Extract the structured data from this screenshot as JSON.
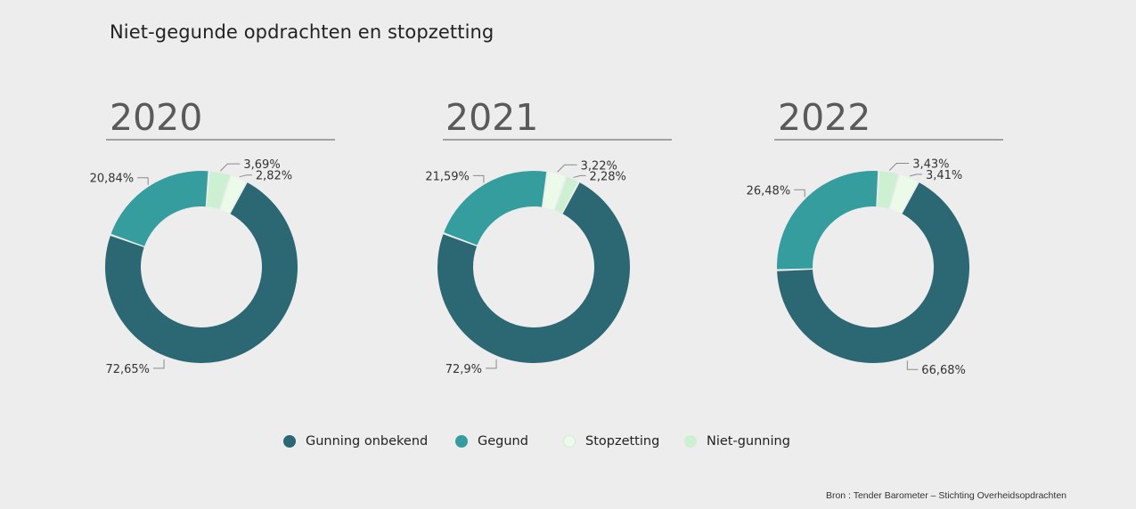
{
  "title": "Niet-gegunde opdrachten en stopzetting",
  "source": "Bron : Tender Barometer – Stichting Overheidsopdrachten",
  "colors": {
    "gunning_onbekend": "#2b6874",
    "gegund": "#359d9e",
    "stopzetting": "#ecfaea",
    "niet_gunning": "#cdf0d3"
  },
  "legend": [
    {
      "label": "Gunning onbekend",
      "color": "#2b6874"
    },
    {
      "label": "Gegund",
      "color": "#359d9e"
    },
    {
      "label": "Stopzetting",
      "color": "#ecfaea"
    },
    {
      "label": "Niet-gunning",
      "color": "#cdf0d3"
    }
  ],
  "chart_data": [
    {
      "type": "pie",
      "title": "2020",
      "categories": [
        "Gunning onbekend",
        "Gegund",
        "Niet-gunning",
        "Stopzetting"
      ],
      "values": [
        72.65,
        20.84,
        3.69,
        2.82
      ],
      "labels": [
        "72,65%",
        "20,84%",
        "3,69%",
        "2,82%"
      ]
    },
    {
      "type": "pie",
      "title": "2021",
      "categories": [
        "Gunning onbekend",
        "Gegund",
        "Stopzetting",
        "Niet-gunning"
      ],
      "values": [
        72.9,
        21.59,
        3.22,
        2.28
      ],
      "labels": [
        "72,9%",
        "21,59%",
        "3,22%",
        "2,28%"
      ]
    },
    {
      "type": "pie",
      "title": "2022",
      "categories": [
        "Gunning onbekend",
        "Gegund",
        "Niet-gunning",
        "Stopzetting"
      ],
      "values": [
        66.68,
        26.48,
        3.43,
        3.41
      ],
      "labels": [
        "66,68%",
        "26,48%",
        "3,43%",
        "3,41%"
      ]
    }
  ]
}
